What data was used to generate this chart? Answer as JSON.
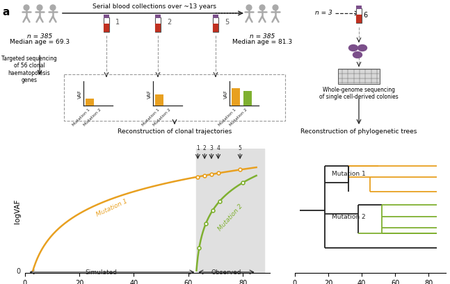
{
  "title_label": "a",
  "serial_text": "Serial blood collections over ~13 years",
  "n_left": "n = 385",
  "median_left": "Median age = 69.3",
  "n_right": "n = 385",
  "median_right": "Median age = 81.3",
  "n_wgs": "n = 3",
  "wgs_number": "6",
  "targeted_seq_text": "Targeted sequencing\nof 56 clonal\nhaematopoiesis\ngenes",
  "wgs_text": "Whole-genome sequencing\nof single cell-derived colonies",
  "recon_clonal_text": "Reconstruction of clonal trajectories",
  "recon_phylo_text": "Reconstruction of phylogenetic trees",
  "simulated_text": "Simulated",
  "observed_text": "Observed",
  "mutation1_text": "Mutation 1",
  "mutation2_text": "Mutation 2",
  "color_orange": "#E8A020",
  "color_green": "#7FB030",
  "color_black": "#222222",
  "color_gray": "#999999",
  "color_darkgray": "#555555",
  "color_lightgray": "#E0E0E0",
  "color_purple": "#7B4F8A",
  "color_blood": "#C03020"
}
